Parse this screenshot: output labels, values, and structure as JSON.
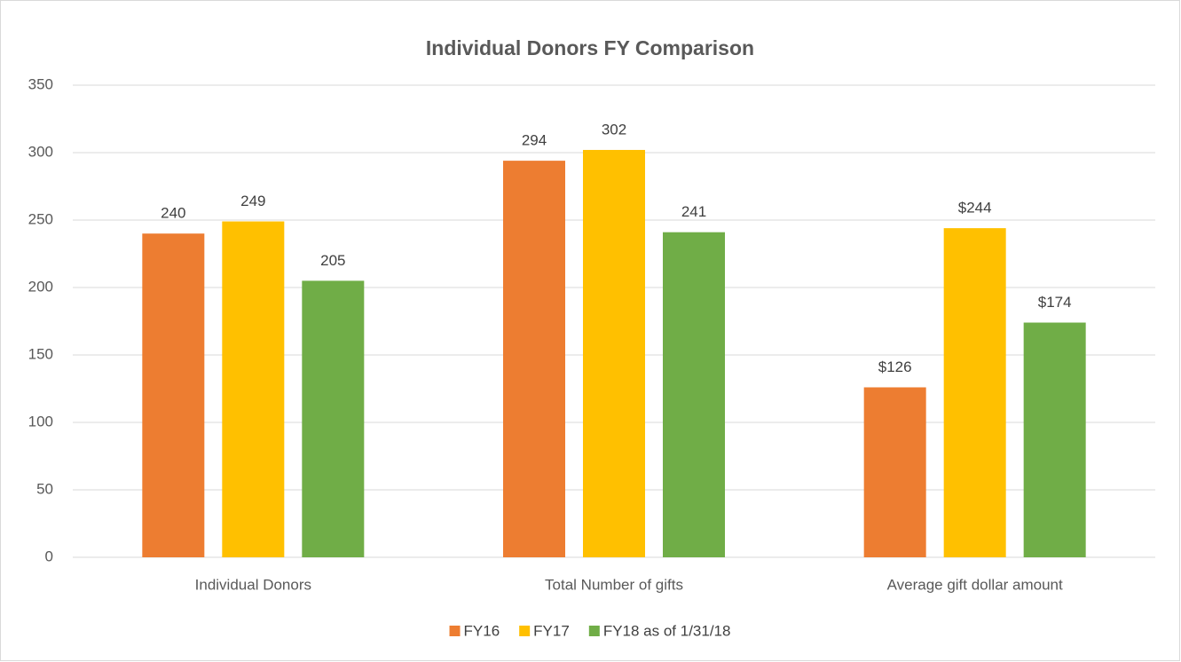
{
  "chart_data": {
    "type": "bar",
    "title": "Individual Donors FY Comparison",
    "categories": [
      "Individual Donors",
      "Total Number of gifts",
      "Average gift dollar amount"
    ],
    "series": [
      {
        "name": "FY16",
        "color": "#ED7D31",
        "values": [
          240,
          294,
          126
        ],
        "value_labels": [
          "240",
          "294",
          "$126"
        ]
      },
      {
        "name": "FY17",
        "color": "#FFC000",
        "values": [
          249,
          302,
          244
        ],
        "value_labels": [
          "249",
          "302",
          "$244"
        ]
      },
      {
        "name": "FY18 as of 1/31/18",
        "color": "#70AD47",
        "values": [
          205,
          241,
          174
        ],
        "value_labels": [
          "205",
          "241",
          "$174"
        ]
      }
    ],
    "ylim": [
      0,
      350
    ],
    "yticks": [
      0,
      50,
      100,
      150,
      200,
      250,
      300,
      350
    ],
    "grid": true,
    "legend": "bottom"
  }
}
